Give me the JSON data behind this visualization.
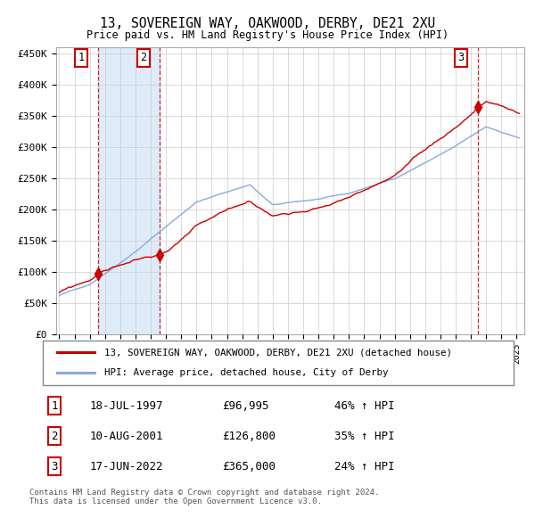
{
  "title": "13, SOVEREIGN WAY, OAKWOOD, DERBY, DE21 2XU",
  "subtitle": "Price paid vs. HM Land Registry's House Price Index (HPI)",
  "ylabel_ticks": [
    "£0",
    "£50K",
    "£100K",
    "£150K",
    "£200K",
    "£250K",
    "£300K",
    "£350K",
    "£400K",
    "£450K"
  ],
  "ytick_values": [
    0,
    50000,
    100000,
    150000,
    200000,
    250000,
    300000,
    350000,
    400000,
    450000
  ],
  "ylim": [
    0,
    460000
  ],
  "sale_dates": [
    1997.54,
    2001.61,
    2022.46
  ],
  "sale_prices": [
    96995,
    126800,
    365000
  ],
  "sale_labels": [
    "1",
    "2",
    "3"
  ],
  "sale_date_strs": [
    "18-JUL-1997",
    "10-AUG-2001",
    "17-JUN-2022"
  ],
  "shaded_regions": [
    [
      1997.54,
      2001.61
    ]
  ],
  "vline_color": "#cc0000",
  "shade_color": "#d0e4f7",
  "red_line_color": "#cc0000",
  "blue_line_color": "#88aadd",
  "marker_color": "#cc0000",
  "box_color": "#cc0000",
  "legend_red_label": "13, SOVEREIGN WAY, OAKWOOD, DERBY, DE21 2XU (detached house)",
  "legend_blue_label": "HPI: Average price, detached house, City of Derby",
  "footer": "Contains HM Land Registry data © Crown copyright and database right 2024.\nThis data is licensed under the Open Government Licence v3.0.",
  "table_rows": [
    [
      "1",
      "18-JUL-1997",
      "£96,995",
      "46% ↑ HPI"
    ],
    [
      "2",
      "10-AUG-2001",
      "£126,800",
      "35% ↑ HPI"
    ],
    [
      "3",
      "17-JUN-2022",
      "£365,000",
      "24% ↑ HPI"
    ]
  ],
  "xlim": [
    1994.8,
    2025.5
  ],
  "xtick_start": 1995,
  "xtick_end": 2025
}
